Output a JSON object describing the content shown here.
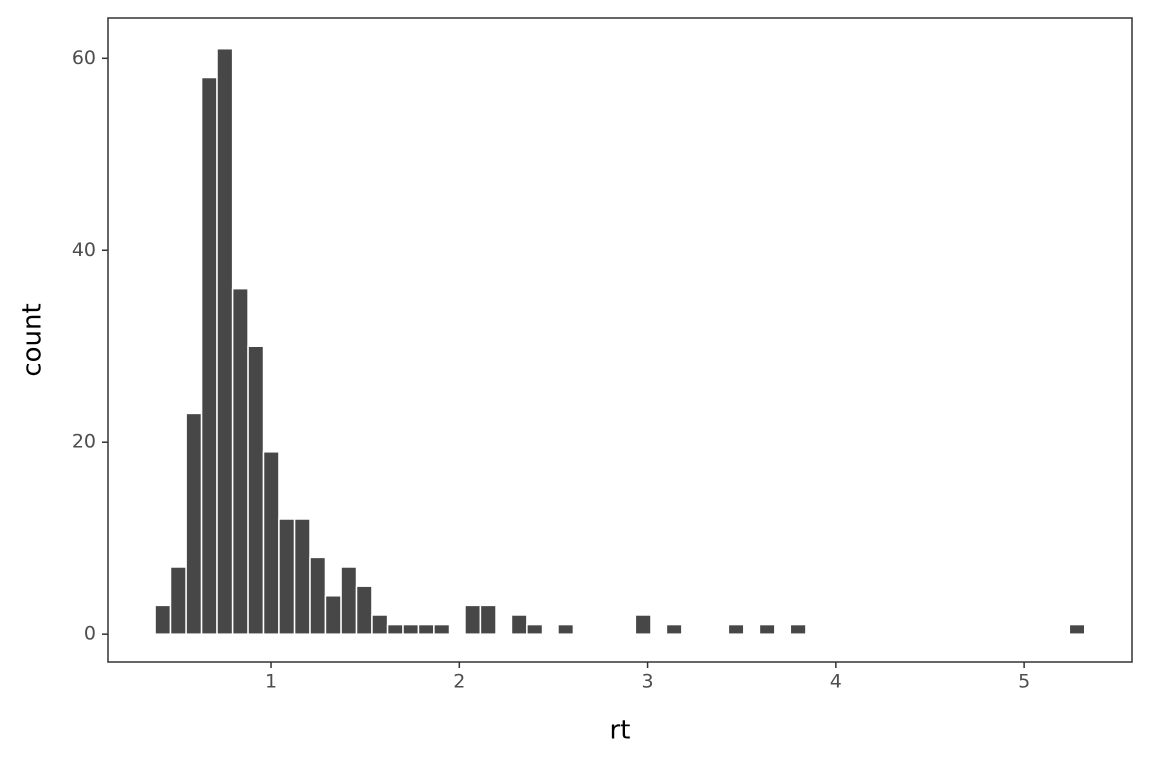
{
  "chart_data": {
    "type": "histogram",
    "x_label": "rt",
    "y_label": "count",
    "bins": [
      0.384,
      0.466,
      0.549,
      0.631,
      0.713,
      0.796,
      0.878,
      0.96,
      1.042,
      1.125,
      1.207,
      1.289,
      1.372,
      1.454,
      1.536,
      1.619,
      1.701,
      1.783,
      1.865,
      1.948,
      2.03,
      2.112,
      2.195,
      2.277,
      2.359,
      2.442,
      2.524,
      2.606,
      2.688,
      2.771,
      2.853,
      2.935,
      3.018,
      3.1,
      3.182,
      3.265,
      3.347,
      3.429,
      3.511,
      3.594,
      3.676,
      3.758,
      3.841,
      3.923,
      4.005,
      4.088,
      4.17,
      4.252,
      4.334,
      4.417,
      4.499,
      4.581,
      4.664,
      4.746,
      4.828,
      4.911,
      4.993,
      5.075,
      5.157,
      5.24,
      5.322
    ],
    "values": [
      3,
      7,
      23,
      58,
      61,
      36,
      30,
      19,
      12,
      12,
      8,
      4,
      7,
      5,
      2,
      1,
      1,
      1,
      1,
      0,
      3,
      3,
      0,
      2,
      1,
      0,
      1,
      0,
      0,
      0,
      0,
      2,
      0,
      1,
      0,
      0,
      0,
      1,
      0,
      1,
      0,
      1,
      0,
      0,
      0,
      0,
      0,
      0,
      0,
      0,
      0,
      0,
      0,
      0,
      0,
      0,
      0,
      0,
      0,
      1
    ],
    "color": "#474747",
    "xlim": [
      0.134,
      5.573
    ],
    "ylim": [
      -2.9,
      64.2
    ],
    "xticks": [
      1,
      2,
      3,
      4,
      5
    ],
    "yticks": [
      0,
      20,
      40,
      60
    ],
    "grid": false
  }
}
